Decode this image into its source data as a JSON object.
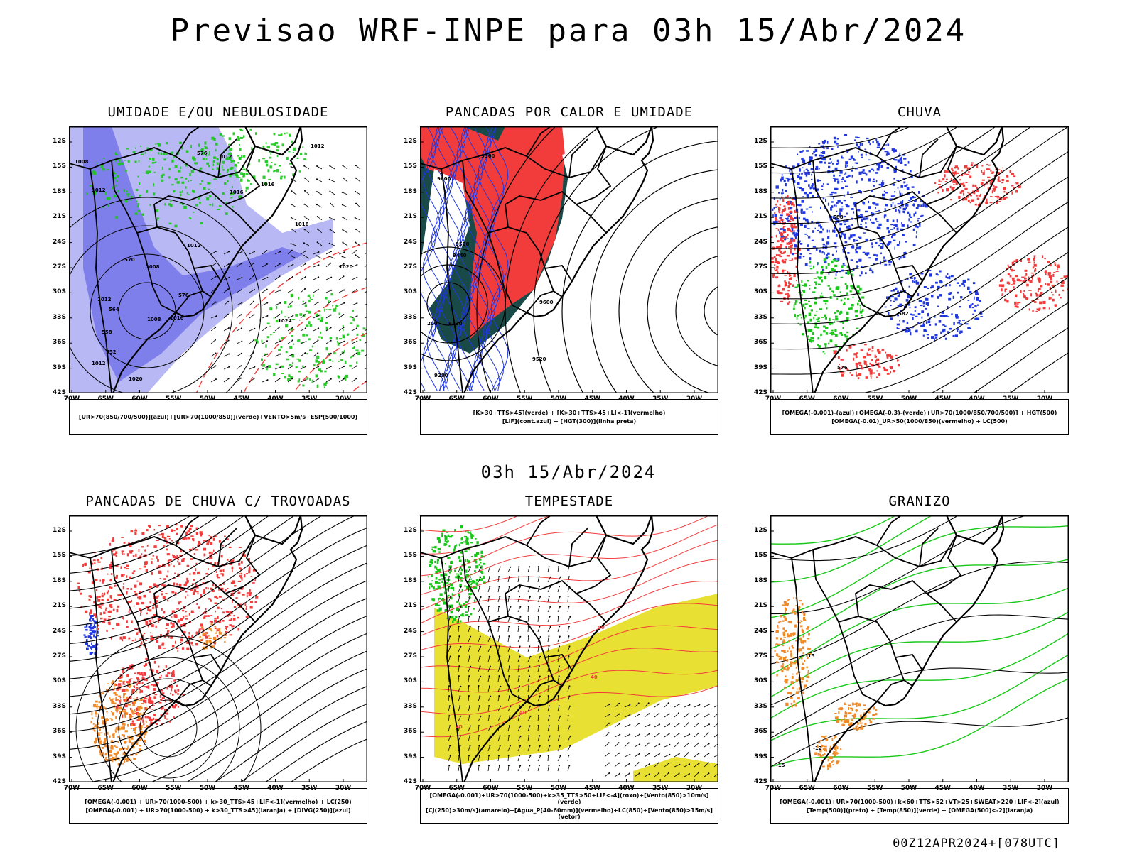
{
  "title": "Previsao WRF-INPE  para 03h 15/Abr/2024",
  "mid_title": "03h 15/Abr/2024",
  "footer": "00Z12APR2024+[078UTC]",
  "axes": {
    "lat_labels": [
      "12S",
      "15S",
      "18S",
      "21S",
      "24S",
      "27S",
      "30S",
      "33S",
      "36S",
      "39S",
      "42S"
    ],
    "lon_labels": [
      "70W",
      "65W",
      "60W",
      "55W",
      "50W",
      "45W",
      "40W",
      "35W",
      "30W"
    ]
  },
  "colors": {
    "blue": "#2038e0",
    "light_blue": "#b8b8f4",
    "mid_blue": "#7070e8",
    "green": "#18c818",
    "red": "#f23c3c",
    "dark_teal": "#1a4a48",
    "yellow": "#e8e032",
    "orange": "#f08a28"
  },
  "panels": [
    {
      "title": "UMIDADE E/OU NEBULOSIDADE",
      "legend": [
        "[UR>70(850/700/500)](azul)+[UR>70(1000/850)](verde)+VENTO>5m/s+ESP(500/1000)"
      ],
      "contour_labels": [
        "1012",
        "1012",
        "1008",
        "1012",
        "1016",
        "1016",
        "1012",
        "1008",
        "1008",
        "1012",
        "1012",
        "1016",
        "1020",
        "1016",
        "1024",
        "1020",
        "576",
        "570",
        "564",
        "558",
        "552",
        "576"
      ]
    },
    {
      "title": "PANCADAS POR CALOR E UMIDADE",
      "legend": [
        "[K>30+TTS>45](verde) + [K>30+TTS>45+LI<-1](vermelho)",
        "[LIF](cont.azul) + [HGT(300)](linha preta)"
      ],
      "contour_labels": [
        "9560",
        "9600",
        "9520",
        "9440",
        "9600",
        "9520",
        "9280",
        "9320",
        "200"
      ]
    },
    {
      "title": "CHUVA",
      "legend": [
        "[OMEGA(-0.001)-(azul)+OMEGA(-0.3)-(verde)+UR>70(1000/850/700/500)] + HGT(500)",
        "[OMEGA(-0.01)_UR>50(1000/850)(vermelho) + LC(500)"
      ],
      "contour_labels": [
        "588",
        "582",
        "576"
      ]
    },
    {
      "title": "PANCADAS DE CHUVA C/ TROVOADAS",
      "legend": [
        "[OMEGA(-0.001) + UR>70(1000-500) + k>30_TTS>45+LIF<-1](vermelho) + LC(250)",
        "[OMEGA(-0.001) + UR>70(1000-500) + k>30_TTS>45](laranja) + [DIVG(250)](azul)"
      ],
      "contour_labels": []
    },
    {
      "title": "TEMPESTADE",
      "legend": [
        "[OMEGA(-0.001)+UR>70(1000-500)+k>35_TTS>50+LIF<-4](roxo)+[Vento(850)>10m/s](verde)",
        "[CJ(250)>30m/s](amarelo)+[Agua_P(40-60mm)](vermelho)+LC(850)+[Vento(850)>15m/s](vetor)"
      ],
      "contour_labels": [
        "40",
        "40",
        "40",
        "50"
      ]
    },
    {
      "title": "GRANIZO",
      "legend": [
        "[OMEGA(-0.001)+UR>70(1000-500)+k<60+TTS>52+VT>25+SWEAT>220+LIF<-2](azul)",
        "[Temp(500)](preto) + [Temp(850)](verde) + [OMEGA(500)<-2](laranja)"
      ],
      "contour_labels": [
        "-15",
        "-15",
        "-12"
      ]
    }
  ]
}
